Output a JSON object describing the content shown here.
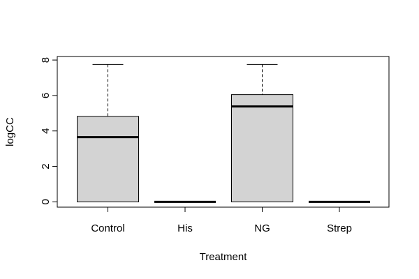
{
  "chart_data": {
    "type": "boxplot",
    "title": "",
    "xlabel": "Treatment",
    "ylabel": "logCC",
    "ylim": [
      -0.3,
      8.2
    ],
    "yticks": [
      0,
      2,
      4,
      6,
      8
    ],
    "grid": false,
    "categories": [
      "Control",
      "His",
      "NG",
      "Strep"
    ],
    "boxes": [
      {
        "category": "Control",
        "min": 0,
        "q1": 0,
        "median": 3.65,
        "q3": 4.82,
        "max": 7.75
      },
      {
        "category": "His",
        "min": 0,
        "q1": 0,
        "median": 0,
        "q3": 0,
        "max": 0
      },
      {
        "category": "NG",
        "min": 0,
        "q1": 0,
        "median": 5.38,
        "q3": 6.05,
        "max": 7.75
      },
      {
        "category": "Strep",
        "min": 0,
        "q1": 0,
        "median": 0,
        "q3": 0,
        "max": 0
      }
    ],
    "colors": {
      "box_fill": "#d3d3d3",
      "stroke": "#000000"
    }
  }
}
